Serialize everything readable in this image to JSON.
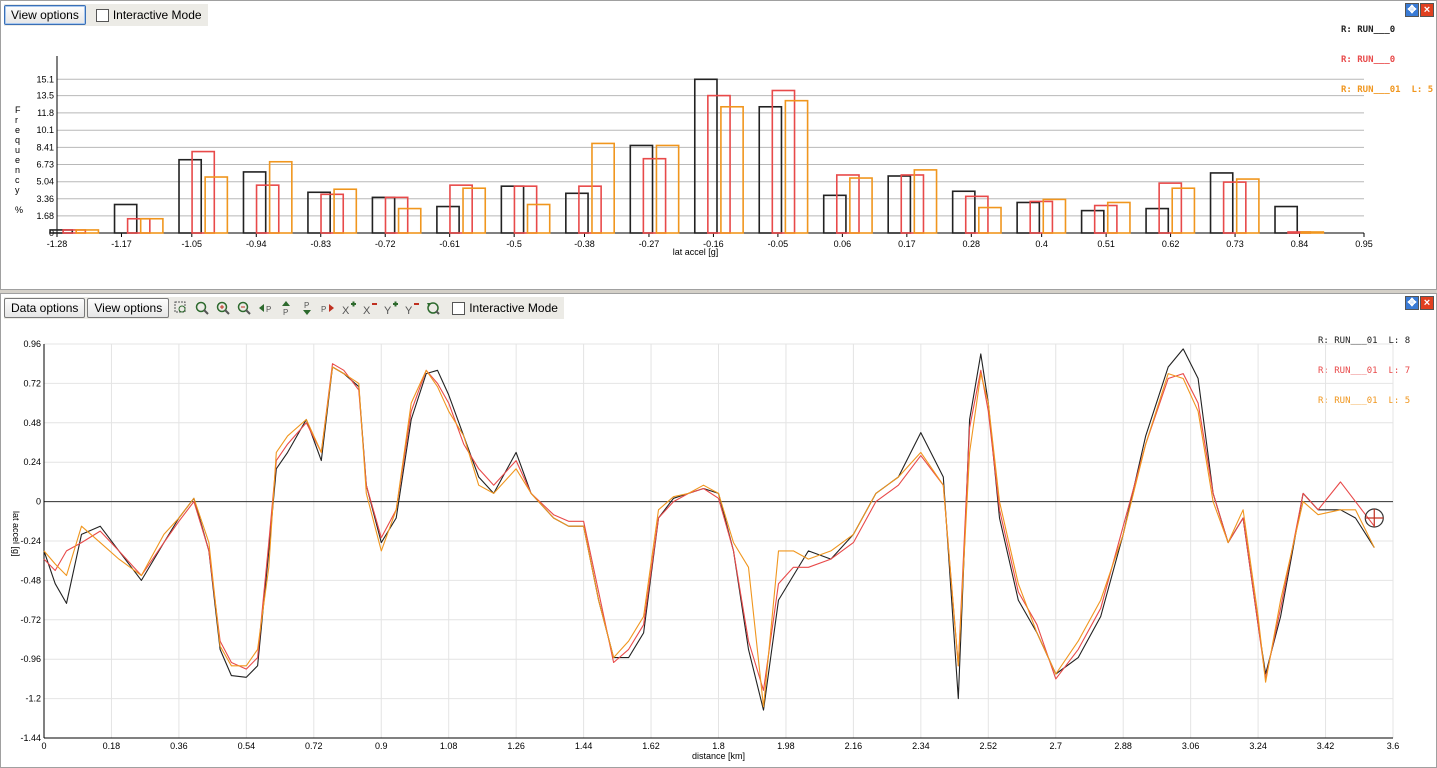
{
  "top_panel": {
    "toolbar": {
      "view_options": "View options",
      "interactive_mode": "Interactive Mode"
    },
    "legend": [
      "R: RUN___0",
      "R: RUN___0",
      "R: RUN___01  L: 5"
    ],
    "legend_colors": [
      "#222222",
      "#e84a4a",
      "#f0961e"
    ]
  },
  "bottom_panel": {
    "toolbar": {
      "data_options": "Data options",
      "view_options": "View options",
      "interactive_mode": "Interactive Mode",
      "icons": [
        "zoom-box-icon",
        "zoom-region-icon",
        "zoom-in-icon",
        "zoom-out-icon",
        "pan-left-icon",
        "pan-up-icon",
        "pan-down-icon",
        "pan-right-icon",
        "x-zoom-in-icon",
        "x-zoom-out-icon",
        "y-zoom-in-icon",
        "y-zoom-out-icon",
        "reset-view-icon"
      ]
    },
    "legend": [
      "R: RUN___01  L: 8",
      "R: RUN___01  L: 7",
      "R: RUN___01  L: 5"
    ],
    "legend_colors": [
      "#222222",
      "#e84a4a",
      "#f0961e"
    ]
  },
  "chart_data": [
    {
      "type": "bar",
      "xlabel": "lat accel [g]",
      "ylabel": "Frequency %",
      "ylim": [
        0,
        16.8
      ],
      "xlim": [
        -1.28,
        0.95
      ],
      "yticks": [
        "0",
        "1.68",
        "3.36",
        "5.04",
        "6.73",
        "8.41",
        "10.1",
        "11.8",
        "13.5",
        "15.1"
      ],
      "xticks": [
        "-1.28",
        "-1.17",
        "-1.05",
        "-0.94",
        "-0.83",
        "-0.72",
        "-0.61",
        "-0.5",
        "-0.38",
        "-0.27",
        "-0.16",
        "-0.05",
        "0.06",
        "0.17",
        "0.28",
        "0.4",
        "0.51",
        "0.62",
        "0.73",
        "0.84",
        "0.95"
      ],
      "bin_centers": [
        -1.245,
        -1.135,
        -1.025,
        -0.915,
        -0.805,
        -0.695,
        -0.585,
        -0.475,
        -0.365,
        -0.255,
        -0.145,
        -0.035,
        0.075,
        0.185,
        0.295,
        0.405,
        0.515,
        0.625,
        0.735,
        0.845
      ],
      "grid": true,
      "series": [
        {
          "color": "#222222",
          "values": [
            0.3,
            2.8,
            7.2,
            6.0,
            4.0,
            3.5,
            2.6,
            4.6,
            3.9,
            8.6,
            15.1,
            12.4,
            3.7,
            5.6,
            4.1,
            3.0,
            2.2,
            2.4,
            5.9,
            2.6
          ]
        },
        {
          "color": "#e84a4a",
          "values": [
            0.3,
            1.4,
            8.0,
            4.7,
            3.8,
            3.5,
            4.7,
            4.6,
            4.6,
            7.3,
            13.5,
            14.0,
            5.7,
            5.7,
            3.6,
            3.1,
            2.7,
            4.9,
            5.0,
            0.1
          ]
        },
        {
          "color": "#f0961e",
          "values": [
            0.3,
            1.4,
            5.5,
            7.0,
            4.3,
            2.4,
            4.4,
            2.8,
            8.8,
            8.6,
            12.4,
            13.0,
            5.4,
            6.2,
            2.5,
            3.3,
            3.0,
            4.4,
            5.3,
            0.1
          ]
        }
      ]
    },
    {
      "type": "line",
      "xlabel": "distance [km]",
      "ylabel": "lat accel [g]",
      "xlim": [
        0,
        3.6
      ],
      "ylim": [
        -1.44,
        0.96
      ],
      "xticks": [
        "0",
        "0.18",
        "0.36",
        "0.54",
        "0.72",
        "0.9",
        "1.08",
        "1.26",
        "1.44",
        "1.62",
        "1.8",
        "1.98",
        "2.16",
        "2.34",
        "2.52",
        "2.7",
        "2.88",
        "3.06",
        "3.24",
        "3.42",
        "3.6"
      ],
      "yticks": [
        "-1.44",
        "-1.2",
        "-0.96",
        "-0.72",
        "-0.48",
        "-0.24",
        "0",
        "0.24",
        "0.48",
        "0.72",
        "0.96"
      ],
      "grid": true,
      "series": [
        {
          "color": "#222222",
          "x": [
            0,
            0.03,
            0.06,
            0.1,
            0.15,
            0.2,
            0.26,
            0.32,
            0.36,
            0.4,
            0.44,
            0.47,
            0.5,
            0.54,
            0.57,
            0.6,
            0.62,
            0.65,
            0.7,
            0.74,
            0.77,
            0.8,
            0.84,
            0.86,
            0.9,
            0.94,
            0.98,
            1.02,
            1.05,
            1.08,
            1.12,
            1.16,
            1.2,
            1.26,
            1.3,
            1.36,
            1.4,
            1.44,
            1.48,
            1.52,
            1.56,
            1.6,
            1.64,
            1.68,
            1.72,
            1.76,
            1.8,
            1.84,
            1.88,
            1.92,
            1.96,
            2.0,
            2.04,
            2.1,
            2.16,
            2.22,
            2.28,
            2.34,
            2.4,
            2.44,
            2.47,
            2.5,
            2.52,
            2.55,
            2.6,
            2.65,
            2.7,
            2.76,
            2.82,
            2.88,
            2.94,
            3.0,
            3.04,
            3.08,
            3.12,
            3.16,
            3.2,
            3.24,
            3.26,
            3.3,
            3.36,
            3.4,
            3.46,
            3.5,
            3.55
          ],
          "y": [
            -0.3,
            -0.5,
            -0.62,
            -0.2,
            -0.15,
            -0.3,
            -0.48,
            -0.25,
            -0.1,
            0.02,
            -0.3,
            -0.9,
            -1.06,
            -1.07,
            -1.0,
            -0.3,
            0.2,
            0.3,
            0.5,
            0.25,
            0.82,
            0.78,
            0.7,
            0.1,
            -0.25,
            -0.1,
            0.5,
            0.78,
            0.8,
            0.65,
            0.4,
            0.15,
            0.05,
            0.3,
            0.05,
            -0.1,
            -0.15,
            -0.15,
            -0.6,
            -0.95,
            -0.95,
            -0.8,
            -0.1,
            0.02,
            0.05,
            0.08,
            0.05,
            -0.3,
            -0.9,
            -1.27,
            -0.6,
            -0.45,
            -0.3,
            -0.35,
            -0.2,
            0.05,
            0.15,
            0.42,
            0.15,
            -1.2,
            0.5,
            0.9,
            0.6,
            -0.1,
            -0.6,
            -0.8,
            -1.05,
            -0.95,
            -0.7,
            -0.2,
            0.4,
            0.82,
            0.93,
            0.75,
            0.05,
            -0.25,
            -0.1,
            -0.75,
            -1.05,
            -0.7,
            0.05,
            -0.05,
            -0.05,
            -0.1,
            -0.28
          ]
        },
        {
          "color": "#e84a4a",
          "x": [
            0,
            0.03,
            0.06,
            0.1,
            0.15,
            0.2,
            0.26,
            0.32,
            0.36,
            0.4,
            0.44,
            0.47,
            0.5,
            0.54,
            0.57,
            0.6,
            0.62,
            0.65,
            0.7,
            0.74,
            0.77,
            0.8,
            0.84,
            0.86,
            0.9,
            0.94,
            0.98,
            1.02,
            1.05,
            1.08,
            1.12,
            1.16,
            1.2,
            1.26,
            1.3,
            1.36,
            1.4,
            1.44,
            1.48,
            1.52,
            1.56,
            1.6,
            1.64,
            1.68,
            1.72,
            1.76,
            1.8,
            1.84,
            1.88,
            1.92,
            1.96,
            2.0,
            2.04,
            2.1,
            2.16,
            2.22,
            2.28,
            2.34,
            2.4,
            2.44,
            2.47,
            2.5,
            2.52,
            2.55,
            2.6,
            2.65,
            2.7,
            2.76,
            2.82,
            2.88,
            2.94,
            3.0,
            3.04,
            3.08,
            3.12,
            3.16,
            3.2,
            3.24,
            3.26,
            3.3,
            3.36,
            3.4,
            3.46,
            3.5,
            3.55
          ],
          "y": [
            -0.35,
            -0.42,
            -0.3,
            -0.25,
            -0.18,
            -0.3,
            -0.45,
            -0.25,
            -0.12,
            0.0,
            -0.3,
            -0.85,
            -0.98,
            -1.02,
            -0.95,
            -0.25,
            0.25,
            0.35,
            0.48,
            0.3,
            0.84,
            0.8,
            0.68,
            0.1,
            -0.22,
            -0.05,
            0.55,
            0.8,
            0.72,
            0.6,
            0.35,
            0.2,
            0.1,
            0.25,
            0.05,
            -0.08,
            -0.12,
            -0.12,
            -0.55,
            -0.98,
            -0.9,
            -0.75,
            -0.1,
            0.0,
            0.05,
            0.08,
            0.02,
            -0.3,
            -0.85,
            -1.15,
            -0.5,
            -0.4,
            -0.4,
            -0.35,
            -0.25,
            0.0,
            0.1,
            0.28,
            0.1,
            -1.0,
            0.45,
            0.8,
            0.55,
            -0.05,
            -0.55,
            -0.75,
            -1.08,
            -0.9,
            -0.65,
            -0.15,
            0.35,
            0.75,
            0.78,
            0.6,
            0.05,
            -0.25,
            -0.1,
            -0.75,
            -1.08,
            -0.65,
            0.05,
            -0.05,
            0.12,
            0.0,
            -0.15
          ]
        },
        {
          "color": "#f0961e",
          "x": [
            0,
            0.03,
            0.06,
            0.1,
            0.15,
            0.2,
            0.26,
            0.32,
            0.36,
            0.4,
            0.44,
            0.47,
            0.5,
            0.54,
            0.57,
            0.6,
            0.62,
            0.65,
            0.7,
            0.74,
            0.77,
            0.8,
            0.84,
            0.86,
            0.9,
            0.94,
            0.98,
            1.02,
            1.05,
            1.08,
            1.12,
            1.16,
            1.2,
            1.26,
            1.3,
            1.36,
            1.4,
            1.44,
            1.48,
            1.52,
            1.56,
            1.6,
            1.64,
            1.68,
            1.72,
            1.76,
            1.8,
            1.84,
            1.88,
            1.92,
            1.96,
            2.0,
            2.04,
            2.1,
            2.16,
            2.22,
            2.28,
            2.34,
            2.4,
            2.44,
            2.47,
            2.5,
            2.52,
            2.55,
            2.6,
            2.65,
            2.7,
            2.76,
            2.82,
            2.88,
            2.94,
            3.0,
            3.04,
            3.08,
            3.12,
            3.16,
            3.2,
            3.24,
            3.26,
            3.3,
            3.36,
            3.4,
            3.46,
            3.5,
            3.55
          ],
          "y": [
            -0.3,
            -0.38,
            -0.45,
            -0.15,
            -0.25,
            -0.35,
            -0.45,
            -0.2,
            -0.1,
            0.02,
            -0.25,
            -0.88,
            -1.0,
            -1.0,
            -0.9,
            -0.4,
            0.3,
            0.4,
            0.5,
            0.3,
            0.82,
            0.78,
            0.72,
            0.05,
            -0.3,
            -0.05,
            0.6,
            0.8,
            0.7,
            0.55,
            0.4,
            0.1,
            0.05,
            0.2,
            0.05,
            -0.1,
            -0.15,
            -0.15,
            -0.6,
            -0.95,
            -0.85,
            -0.7,
            -0.05,
            0.03,
            0.05,
            0.1,
            0.05,
            -0.25,
            -0.4,
            -1.25,
            -0.3,
            -0.3,
            -0.35,
            -0.3,
            -0.2,
            0.05,
            0.15,
            0.3,
            0.1,
            -1.0,
            0.3,
            0.78,
            0.6,
            0.0,
            -0.5,
            -0.8,
            -1.05,
            -0.85,
            -0.6,
            -0.2,
            0.35,
            0.78,
            0.75,
            0.55,
            0.0,
            -0.25,
            -0.05,
            -0.7,
            -1.1,
            -0.6,
            0.0,
            -0.08,
            -0.05,
            -0.05,
            -0.28
          ]
        }
      ]
    }
  ]
}
